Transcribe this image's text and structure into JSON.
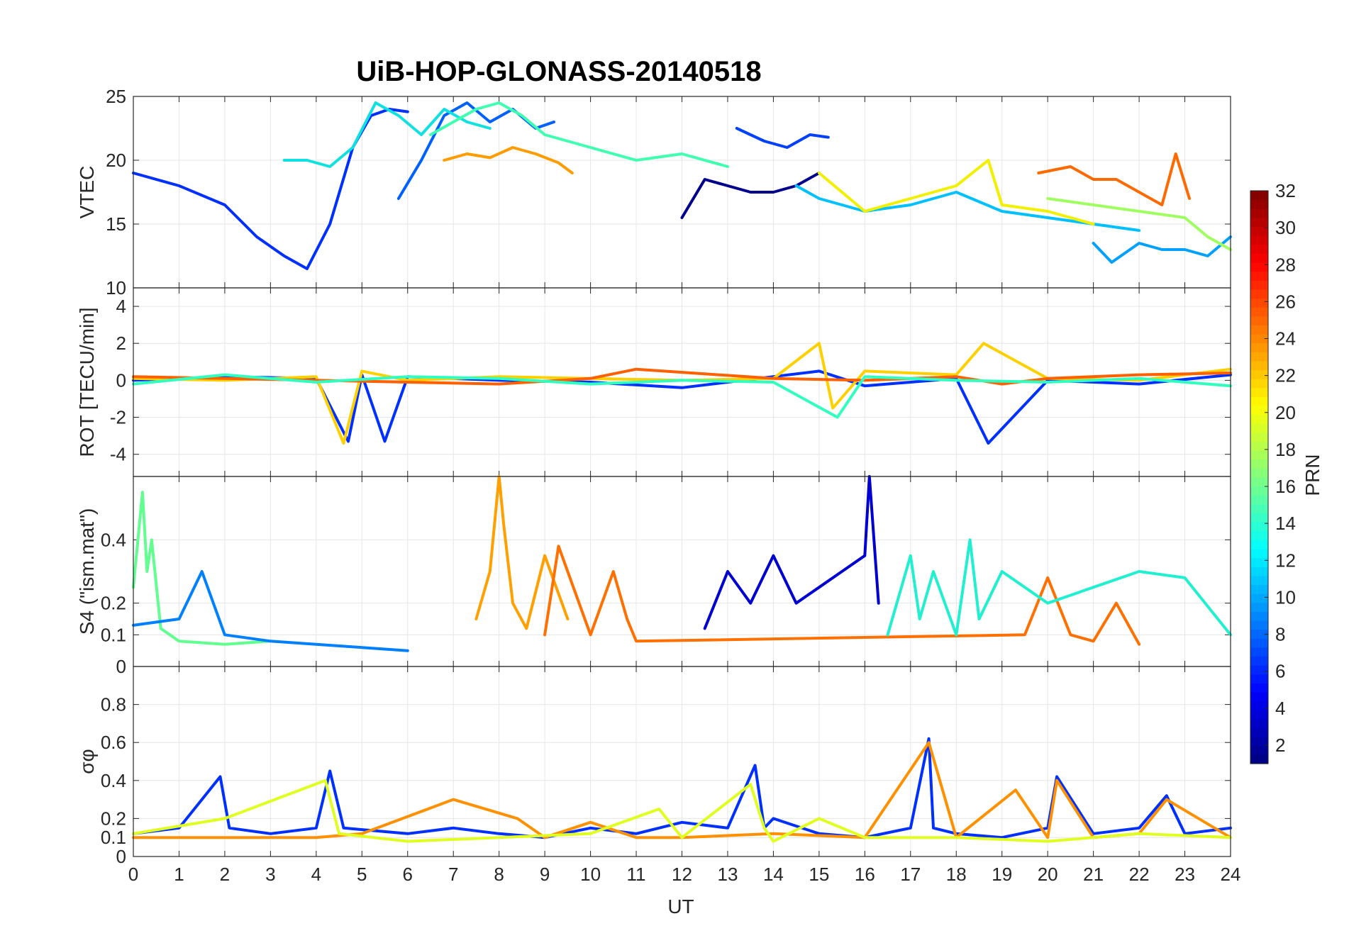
{
  "chart_data": {
    "type": "line",
    "title": "UiB-HOP-GLONASS-20140518",
    "xlabel": "UT",
    "xlim": [
      0,
      24
    ],
    "xticks": [
      "0",
      "1",
      "2",
      "3",
      "4",
      "5",
      "6",
      "7",
      "8",
      "9",
      "10",
      "11",
      "12",
      "13",
      "14",
      "15",
      "16",
      "17",
      "18",
      "19",
      "20",
      "21",
      "22",
      "23",
      "24"
    ],
    "colorbar": {
      "label": "PRN",
      "range": [
        1,
        32
      ],
      "ticks": [
        "2",
        "4",
        "6",
        "8",
        "10",
        "12",
        "14",
        "16",
        "18",
        "20",
        "22",
        "24",
        "26",
        "28",
        "30",
        "32"
      ],
      "colormap": "jet"
    },
    "panels": [
      {
        "id": "vtec",
        "ylabel": "VTEC",
        "ylim": [
          10,
          25
        ],
        "yticks": [
          10,
          15,
          20,
          25
        ],
        "ytick_labels": [
          "10",
          "15",
          "20",
          "25"
        ],
        "grid": true,
        "series": [
          {
            "prn": 3,
            "color": "#0030ff",
            "x": [
              0,
              1,
              2,
              2.7,
              3.3,
              3.8,
              4.3,
              4.8,
              5.2,
              5.6,
              6.0
            ],
            "y": [
              19,
              18,
              16.5,
              14,
              12.5,
              11.5,
              15,
              21,
              23.5,
              24,
              23.8
            ]
          },
          {
            "prn": 5,
            "color": "#0060ff",
            "x": [
              5.8,
              6.3,
              6.8,
              7.3,
              7.8,
              8.3,
              8.8,
              9.2
            ],
            "y": [
              17,
              20,
              23.5,
              24.5,
              23,
              24,
              22.5,
              23
            ]
          },
          {
            "prn": 12,
            "color": "#10e0e0",
            "x": [
              3.3,
              3.8,
              4.3,
              4.8,
              5.3,
              5.8,
              6.3,
              6.8,
              7.3,
              7.8
            ],
            "y": [
              20,
              20,
              19.5,
              21,
              24.5,
              23.5,
              22,
              24,
              23,
              22.5
            ]
          },
          {
            "prn": 15,
            "color": "#40ffb0",
            "x": [
              6.5,
              7.5,
              8.0,
              8.5,
              9.0,
              10.0,
              11.0,
              12.0,
              13.0
            ],
            "y": [
              22,
              24,
              24.5,
              23.5,
              22,
              21,
              20,
              20.5,
              19.5
            ]
          },
          {
            "prn": 22,
            "color": "#ff9c00",
            "x": [
              6.8,
              7.3,
              7.8,
              8.3,
              8.8,
              9.3,
              9.6
            ],
            "y": [
              20,
              20.5,
              20.2,
              21,
              20.5,
              19.8,
              19
            ]
          },
          {
            "prn": 1,
            "color": "#00008c",
            "x": [
              12.0,
              12.5,
              13.0,
              13.5,
              14.0,
              14.5,
              15.0
            ],
            "y": [
              15.5,
              18.5,
              18,
              17.5,
              17.5,
              18,
              19
            ]
          },
          {
            "prn": 4,
            "color": "#0040ff",
            "x": [
              13.2,
              13.8,
              14.3,
              14.8,
              15.2
            ],
            "y": [
              22.5,
              21.5,
              21,
              22,
              21.8
            ]
          },
          {
            "prn": 11,
            "color": "#00c0ff",
            "x": [
              14.5,
              15,
              16,
              17,
              18,
              19,
              20,
              21,
              22
            ],
            "y": [
              18,
              17,
              16,
              16.5,
              17.5,
              16,
              15.5,
              15,
              14.5
            ]
          },
          {
            "prn": 20,
            "color": "#f0f000",
            "x": [
              15,
              16,
              17,
              18,
              18.7,
              19,
              20,
              21
            ],
            "y": [
              19,
              16,
              17,
              18,
              20,
              16.5,
              16,
              15
            ]
          },
          {
            "prn": 24,
            "color": "#ff6a00",
            "x": [
              19.8,
              20.5,
              21,
              21.5,
              22,
              22.5,
              22.8,
              23.1
            ],
            "y": [
              19,
              19.5,
              18.5,
              18.5,
              17.5,
              16.5,
              20.5,
              17
            ]
          },
          {
            "prn": 9,
            "color": "#00a0ff",
            "x": [
              21,
              21.4,
              22,
              22.5,
              23,
              23.5,
              24
            ],
            "y": [
              13.5,
              12,
              13.5,
              13,
              13,
              12.5,
              14
            ]
          },
          {
            "prn": 17,
            "color": "#a0ff60",
            "x": [
              20,
              21,
              22,
              23,
              23.5,
              24
            ],
            "y": [
              17,
              16.5,
              16,
              15.5,
              14,
              13
            ]
          }
        ]
      },
      {
        "id": "rot",
        "ylabel": "ROT [TECU/min]",
        "ylim": [
          -5.2,
          5
        ],
        "yticks": [
          -4,
          -2,
          0,
          2,
          4
        ],
        "ytick_labels": [
          "-4",
          "-2",
          "0",
          "2",
          "4"
        ],
        "grid": true,
        "series": [
          {
            "prn": 3,
            "color": "#0030ff",
            "x": [
              0,
              2,
              4,
              4.7,
              5,
              5.5,
              6,
              8,
              10,
              12,
              14,
              15,
              16,
              18,
              18.7,
              20,
              22,
              24
            ],
            "y": [
              0,
              0.2,
              0.1,
              -3.3,
              0.3,
              -3.3,
              0.2,
              0,
              -0.1,
              -0.4,
              0.2,
              0.5,
              -0.3,
              0.1,
              -3.4,
              0,
              -0.2,
              0.3
            ]
          },
          {
            "prn": 21,
            "color": "#ffd000",
            "x": [
              0,
              2,
              4,
              4.6,
              5,
              6,
              8,
              10,
              12,
              14,
              15,
              15.3,
              16,
              18,
              18.6,
              20,
              22,
              24
            ],
            "y": [
              0.1,
              0,
              0.2,
              -3.4,
              0.5,
              0,
              0.2,
              0.1,
              0,
              0.1,
              2.0,
              -1.5,
              0.5,
              0.3,
              2.0,
              0.1,
              0,
              0.6
            ]
          },
          {
            "prn": 25,
            "color": "#ff6000",
            "x": [
              0,
              4,
              8,
              10,
              11,
              14,
              16,
              18,
              19,
              20,
              22,
              24
            ],
            "y": [
              0.2,
              0,
              -0.2,
              0.1,
              0.6,
              0.1,
              0,
              0.2,
              -0.2,
              0.1,
              0.3,
              0.4
            ]
          },
          {
            "prn": 14,
            "color": "#30ffc0",
            "x": [
              0,
              2,
              4,
              6,
              8,
              10,
              12,
              14,
              15.4,
              16,
              18,
              20,
              22,
              24
            ],
            "y": [
              -0.2,
              0.3,
              -0.1,
              0.2,
              0.1,
              -0.2,
              0,
              -0.1,
              -2.0,
              0.2,
              0,
              -0.1,
              0.1,
              -0.3
            ]
          }
        ]
      },
      {
        "id": "s4",
        "ylabel": "S4 (\"ism.mat\")",
        "ylim": [
          0,
          0.6
        ],
        "yticks": [
          0,
          0.1,
          0.2,
          0.4
        ],
        "ytick_labels": [
          "0",
          "0.1",
          "0.2",
          "0.4"
        ],
        "grid": true,
        "series": [
          {
            "prn": 16,
            "color": "#60ff90",
            "x": [
              0,
              0.2,
              0.3,
              0.4,
              0.6,
              1,
              2,
              3
            ],
            "y": [
              0.25,
              0.55,
              0.3,
              0.4,
              0.12,
              0.08,
              0.07,
              0.08
            ]
          },
          {
            "prn": 22,
            "color": "#ffa000",
            "x": [
              7.5,
              7.8,
              8.0,
              8.1,
              8.3,
              8.6,
              9.0,
              9.5
            ],
            "y": [
              0.15,
              0.3,
              0.6,
              0.45,
              0.2,
              0.12,
              0.35,
              0.15
            ]
          },
          {
            "prn": 2,
            "color": "#0000d0",
            "x": [
              12.5,
              13,
              13.5,
              14,
              14.5,
              15,
              15.5,
              16,
              16.1,
              16.3
            ],
            "y": [
              0.12,
              0.3,
              0.2,
              0.35,
              0.2,
              0.25,
              0.3,
              0.35,
              0.6,
              0.2
            ]
          },
          {
            "prn": 8,
            "color": "#0080ff",
            "x": [
              0,
              1,
              1.5,
              2,
              3,
              4,
              5,
              6
            ],
            "y": [
              0.13,
              0.15,
              0.3,
              0.1,
              0.08,
              0.07,
              0.06,
              0.05
            ]
          },
          {
            "prn": 24,
            "color": "#ff7000",
            "x": [
              9,
              9.3,
              10,
              10.5,
              10.8,
              11,
              19.5,
              20,
              20.5,
              21,
              21.5,
              22
            ],
            "y": [
              0.1,
              0.38,
              0.1,
              0.3,
              0.15,
              0.08,
              0.1,
              0.28,
              0.1,
              0.08,
              0.2,
              0.07
            ]
          },
          {
            "prn": 13,
            "color": "#20f0d0",
            "x": [
              16.5,
              17,
              17.2,
              17.5,
              18,
              18.3,
              18.5,
              19,
              20,
              21,
              22,
              23,
              24
            ],
            "y": [
              0.1,
              0.35,
              0.15,
              0.3,
              0.1,
              0.4,
              0.15,
              0.3,
              0.2,
              0.25,
              0.3,
              0.28,
              0.1
            ]
          }
        ]
      },
      {
        "id": "sigma_phi",
        "ylabel": "σφ",
        "ylim": [
          0,
          1
        ],
        "yticks": [
          0,
          0.1,
          0.2,
          0.4,
          0.6,
          0.8
        ],
        "ytick_labels": [
          "0",
          "0.1",
          "0.2",
          "0.4",
          "0.6",
          "0.8"
        ],
        "grid": true,
        "series": [
          {
            "prn": 3,
            "color": "#0030ff",
            "x": [
              0,
              1,
              1.9,
              2.1,
              3,
              4,
              4.3,
              4.6,
              6,
              7,
              8,
              9,
              10,
              11,
              12,
              13,
              13.6,
              13.8,
              14,
              15,
              16,
              17,
              17.4,
              17.5,
              18,
              19,
              20,
              20.2,
              21,
              22,
              22.6,
              23,
              24
            ],
            "y": [
              0.12,
              0.15,
              0.42,
              0.15,
              0.12,
              0.15,
              0.45,
              0.15,
              0.12,
              0.15,
              0.12,
              0.1,
              0.15,
              0.12,
              0.18,
              0.15,
              0.48,
              0.15,
              0.2,
              0.12,
              0.1,
              0.15,
              0.62,
              0.15,
              0.12,
              0.1,
              0.15,
              0.42,
              0.12,
              0.15,
              0.32,
              0.12,
              0.15
            ]
          },
          {
            "prn": 23,
            "color": "#ff9000",
            "x": [
              0,
              2,
              4,
              5,
              7,
              8.4,
              9,
              10,
              11,
              12,
              14,
              16,
              17.4,
              18,
              19.3,
              20,
              20.2,
              21,
              22,
              22.6,
              24
            ],
            "y": [
              0.1,
              0.1,
              0.1,
              0.12,
              0.3,
              0.2,
              0.1,
              0.18,
              0.1,
              0.1,
              0.12,
              0.1,
              0.6,
              0.1,
              0.35,
              0.1,
              0.4,
              0.1,
              0.12,
              0.3,
              0.1
            ]
          },
          {
            "prn": 19,
            "color": "#e0ff20",
            "x": [
              0,
              2,
              4.2,
              4.5,
              6,
              8,
              10,
              11.5,
              12,
              13.5,
              13.8,
              14,
              15,
              16,
              18,
              20,
              22,
              24
            ],
            "y": [
              0.12,
              0.2,
              0.4,
              0.12,
              0.08,
              0.1,
              0.12,
              0.25,
              0.1,
              0.38,
              0.15,
              0.08,
              0.2,
              0.1,
              0.1,
              0.08,
              0.12,
              0.1
            ]
          }
        ]
      }
    ]
  }
}
